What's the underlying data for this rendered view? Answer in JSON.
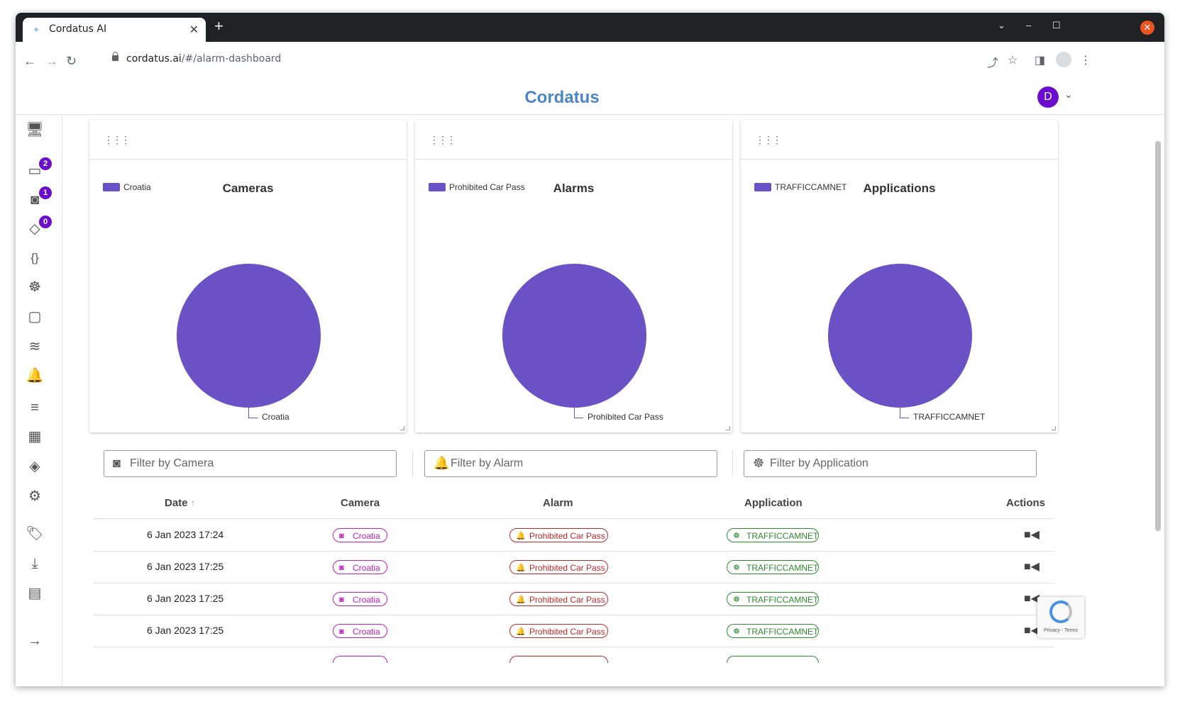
{
  "browser": {
    "tab_title": "Cordatus AI",
    "url_host": "cordatus.ai",
    "url_path": "/#/alarm-dashboard"
  },
  "header": {
    "brand": "Cordatus",
    "user_initial": "D"
  },
  "sidebar": {
    "badges": {
      "devices": "2",
      "cameras": "1",
      "layers": "0"
    }
  },
  "charts": [
    {
      "legend": "Croatia",
      "title": "Cameras",
      "slice_label": "Croatia"
    },
    {
      "legend": "Prohibited Car Pass",
      "title": "Alarms",
      "slice_label": "Prohibited Car Pass"
    },
    {
      "legend": "TRAFFICCAMNET",
      "title": "Applications",
      "slice_label": "TRAFFICCAMNET"
    }
  ],
  "chart_data": [
    {
      "type": "pie",
      "title": "Cameras",
      "categories": [
        "Croatia"
      ],
      "values": [
        100
      ],
      "colors": [
        "#6a52c6"
      ]
    },
    {
      "type": "pie",
      "title": "Alarms",
      "categories": [
        "Prohibited Car Pass"
      ],
      "values": [
        100
      ],
      "colors": [
        "#6a52c6"
      ]
    },
    {
      "type": "pie",
      "title": "Applications",
      "categories": [
        "TRAFFICCAMNET"
      ],
      "values": [
        100
      ],
      "colors": [
        "#6a52c6"
      ]
    }
  ],
  "filters": {
    "camera_placeholder": "Filter by Camera",
    "alarm_placeholder": "Filter by Alarm",
    "application_placeholder": "Filter by Application"
  },
  "table": {
    "headers": {
      "date": "Date",
      "camera": "Camera",
      "alarm": "Alarm",
      "application": "Application",
      "actions": "Actions"
    },
    "sort_indicator": "↑",
    "rows": [
      {
        "date": "6 Jan 2023 17:24",
        "camera": "Croatia",
        "alarm": "Prohibited Car Pass",
        "application": "TRAFFICCAMNET"
      },
      {
        "date": "6 Jan 2023 17:25",
        "camera": "Croatia",
        "alarm": "Prohibited Car Pass",
        "application": "TRAFFICCAMNET"
      },
      {
        "date": "6 Jan 2023 17:25",
        "camera": "Croatia",
        "alarm": "Prohibited Car Pass",
        "application": "TRAFFICCAMNET"
      },
      {
        "date": "6 Jan 2023 17:25",
        "camera": "Croatia",
        "alarm": "Prohibited Car Pass",
        "application": "TRAFFICCAMNET"
      }
    ]
  },
  "recaptcha": {
    "text": "Privacy - Terms"
  },
  "colors": {
    "brand": "#4a86c5",
    "accent": "#6a0dcc",
    "pie": "#6a52c6",
    "camera_chip": "#c020c0",
    "alarm_chip": "#c62828",
    "app_chip": "#2e8b2e"
  }
}
